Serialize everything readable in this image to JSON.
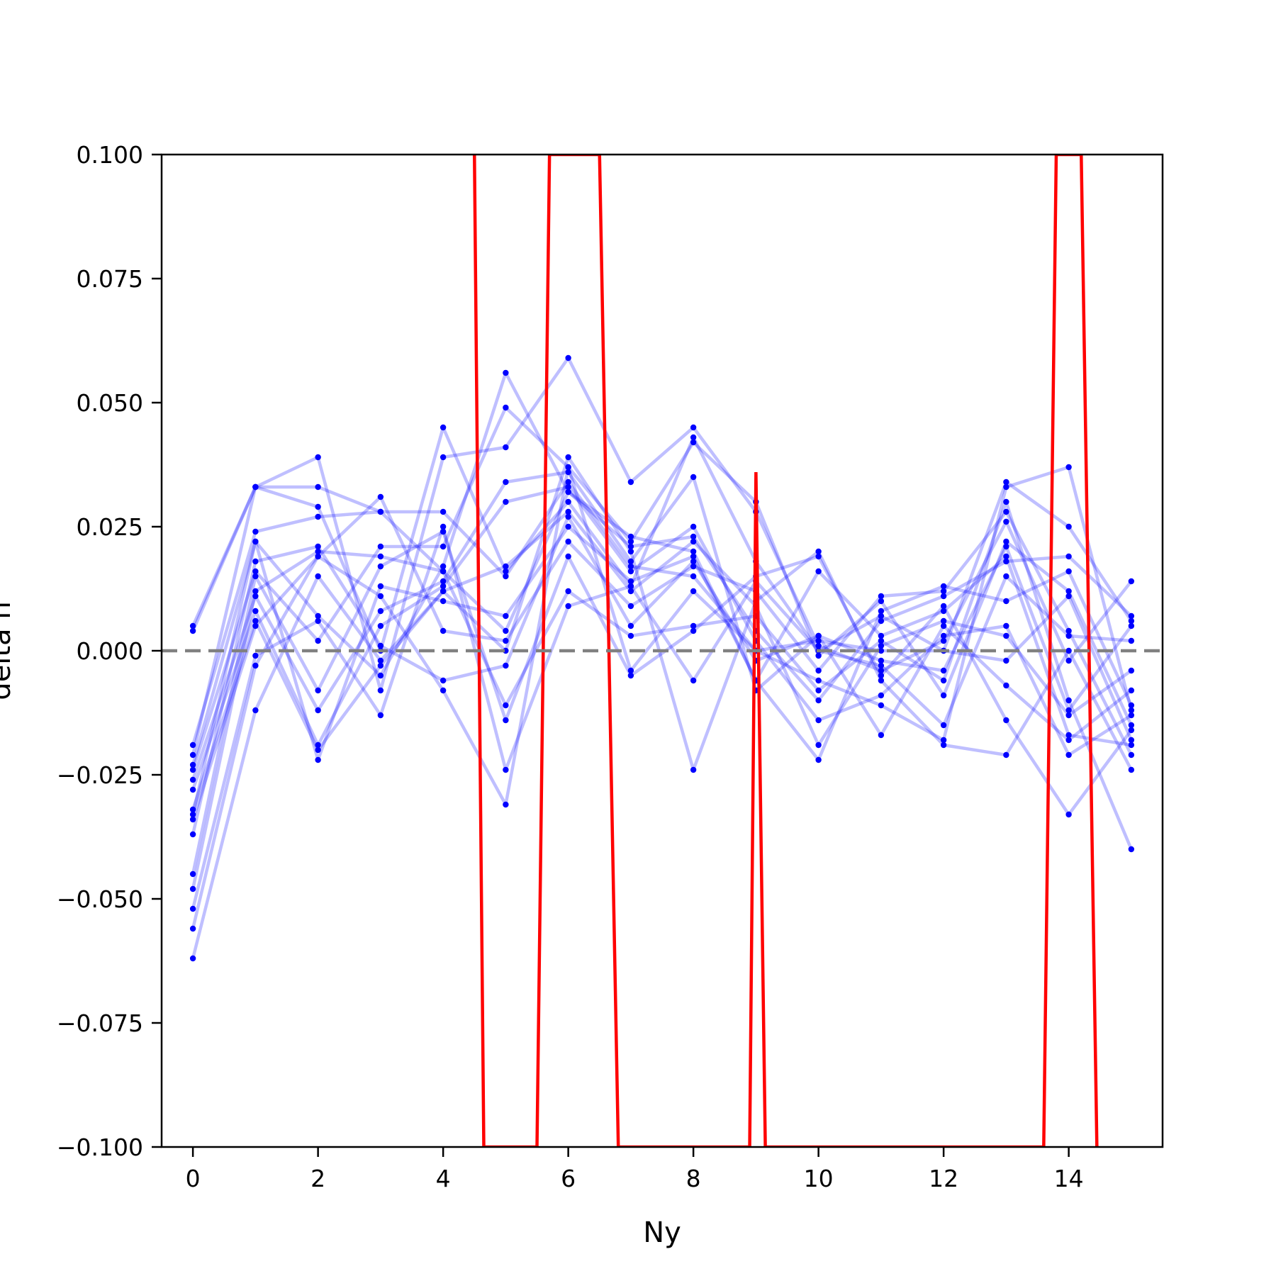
{
  "chart_data": {
    "type": "line",
    "title": "",
    "xlabel": "Ny",
    "ylabel": "delta n",
    "xlim": [
      -0.5,
      15.5
    ],
    "ylim": [
      -0.1,
      0.1
    ],
    "xticks": [
      0,
      2,
      4,
      6,
      8,
      10,
      12,
      14
    ],
    "xtick_labels": [
      "0",
      "2",
      "4",
      "6",
      "8",
      "10",
      "12",
      "14"
    ],
    "yticks": [
      0.1,
      0.075,
      0.05,
      0.025,
      0.0,
      -0.025,
      -0.05,
      -0.075,
      -0.1
    ],
    "ytick_labels": [
      "0.100",
      "0.075",
      "0.050",
      "0.025",
      "0.000",
      "−0.025",
      "−0.050",
      "−0.075",
      "−0.100"
    ],
    "grid": false,
    "legend": "none",
    "reference_line": {
      "y": 0.0,
      "style": "dashed",
      "color": "#808080"
    },
    "colors": {
      "samples": "#0000ff",
      "mean": "#ff0000"
    },
    "x": [
      0,
      1,
      2,
      3,
      4,
      5,
      6,
      7,
      8,
      9,
      10,
      11,
      12,
      13,
      14,
      15
    ],
    "series": [
      {
        "values": [
          0.004,
          0.033,
          0.029,
          0.0,
          0.045,
          0.016,
          0.03,
          0.013,
          0.043,
          0.018,
          0.0,
          0.007,
          0.0,
          0.034,
          0.025,
          0.006
        ]
      },
      {
        "values": [
          0.005,
          0.033,
          0.033,
          0.028,
          0.016,
          0.004,
          0.032,
          0.023,
          0.02,
          -0.006,
          0.016,
          0.003,
          0.008,
          0.019,
          -0.017,
          -0.019
        ]
      },
      {
        "values": [
          -0.019,
          0.024,
          0.027,
          0.028,
          0.028,
          0.015,
          0.034,
          0.017,
          0.015,
          0.0,
          -0.006,
          -0.011,
          -0.018,
          0.033,
          0.037,
          -0.012
        ]
      },
      {
        "values": [
          -0.021,
          0.033,
          0.039,
          -0.008,
          0.039,
          0.041,
          0.059,
          0.034,
          0.045,
          0.028,
          0.001,
          -0.004,
          0.002,
          0.026,
          -0.002,
          0.014
        ]
      },
      {
        "values": [
          -0.023,
          0.022,
          0.007,
          -0.005,
          0.017,
          0.056,
          0.032,
          0.021,
          0.023,
          0.004,
          -0.01,
          0.006,
          0.011,
          0.018,
          0.019,
          0.007
        ]
      },
      {
        "values": [
          -0.024,
          0.016,
          0.002,
          0.021,
          0.021,
          0.049,
          0.037,
          0.022,
          0.042,
          0.03,
          -0.001,
          0.01,
          -0.009,
          0.022,
          0.012,
          -0.015
        ]
      },
      {
        "values": [
          -0.026,
          0.011,
          -0.012,
          0.008,
          0.014,
          0.034,
          0.036,
          0.018,
          0.035,
          -0.008,
          0.003,
          -0.017,
          0.005,
          -0.007,
          -0.018,
          -0.008
        ]
      },
      {
        "values": [
          -0.028,
          0.008,
          -0.019,
          0.005,
          0.013,
          0.03,
          0.033,
          0.016,
          0.025,
          0.002,
          -0.014,
          -0.009,
          0.003,
          0.005,
          -0.021,
          -0.013
        ]
      },
      {
        "values": [
          -0.032,
          0.006,
          -0.02,
          -0.003,
          0.012,
          0.017,
          0.028,
          0.012,
          0.022,
          0.009,
          -0.019,
          0.001,
          0.006,
          0.003,
          -0.013,
          -0.004
        ]
      },
      {
        "values": [
          -0.033,
          0.022,
          -0.022,
          0.013,
          0.01,
          0.007,
          0.025,
          0.014,
          0.019,
          -0.006,
          -0.022,
          0.008,
          0.013,
          0.01,
          0.016,
          -0.011
        ]
      },
      {
        "values": [
          -0.034,
          0.005,
          0.019,
          0.031,
          0.004,
          0.002,
          0.022,
          0.009,
          0.017,
          0.012,
          -0.004,
          0.011,
          0.012,
          0.028,
          0.004,
          -0.021
        ]
      },
      {
        "values": [
          -0.037,
          0.018,
          0.021,
          0.001,
          -0.006,
          -0.003,
          0.027,
          0.005,
          0.018,
          -0.002,
          0.003,
          -0.002,
          -0.004,
          0.021,
          -0.012,
          0.005
        ]
      },
      {
        "values": [
          -0.045,
          0.015,
          -0.008,
          0.017,
          0.024,
          -0.014,
          0.019,
          -0.005,
          0.004,
          0.015,
          0.019,
          -0.005,
          0.009,
          -0.014,
          -0.033,
          -0.016
        ]
      },
      {
        "values": [
          -0.048,
          0.012,
          0.02,
          0.019,
          0.016,
          -0.011,
          0.012,
          0.003,
          0.005,
          0.007,
          -0.008,
          0.002,
          -0.006,
          0.03,
          -0.01,
          -0.04
        ]
      },
      {
        "values": [
          -0.052,
          -0.001,
          0.006,
          -0.013,
          0.025,
          -0.024,
          0.009,
          0.013,
          -0.006,
          0.014,
          0.0,
          -0.003,
          -0.015,
          0.015,
          0.003,
          0.002
        ]
      },
      {
        "values": [
          -0.056,
          -0.003,
          0.019,
          0.011,
          -0.008,
          -0.031,
          0.037,
          -0.004,
          0.012,
          0.0,
          0.002,
          0.0,
          0.0,
          -0.002,
          0.011,
          -0.018
        ]
      },
      {
        "values": [
          -0.062,
          -0.012,
          0.015,
          -0.002,
          0.012,
          0.0,
          0.039,
          0.02,
          -0.024,
          0.01,
          0.02,
          -0.006,
          -0.019,
          -0.021,
          0.0,
          -0.024
        ]
      }
    ],
    "mean_line": {
      "x": [
        4.5,
        4.65,
        5.5,
        5.7,
        6.5,
        6.8,
        8.9,
        9.0,
        9.15,
        13.6,
        13.8,
        14.2,
        14.45
      ],
      "values": [
        0.1,
        -0.1,
        -0.1,
        0.1,
        0.1,
        -0.1,
        -0.1,
        0.036,
        -0.1,
        -0.1,
        0.1,
        0.1,
        -0.1
      ]
    }
  }
}
